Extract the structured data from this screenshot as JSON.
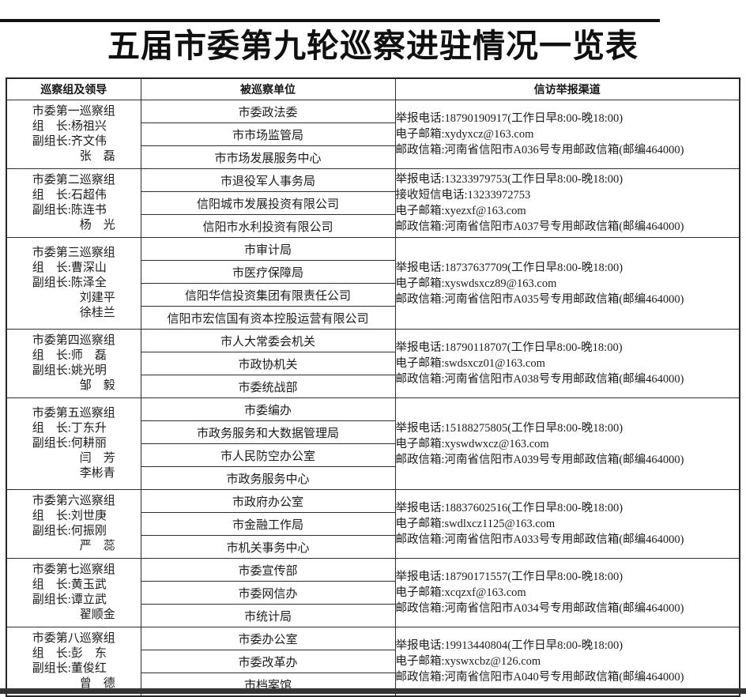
{
  "page": {
    "title": "五届市委第九轮巡察进驻情况一览表"
  },
  "table": {
    "headers": [
      "巡察组及领导",
      "被巡察单位",
      "信访举报渠道"
    ],
    "groups": [
      {
        "name": "市委第一巡察组",
        "leaders": [
          "组　长:杨祖兴",
          "副组长:齐文伟",
          "　　　　张　磊"
        ],
        "units": [
          "市委政法委",
          "市市场监管局",
          "市市场发展服务中心"
        ],
        "channels": [
          "举报电话:18790190917(工作日早8:00-晚18:00)",
          "电子邮箱:xydyxcz@163.com",
          "邮政信箱:河南省信阳市A036号专用邮政信箱(邮编464000)"
        ]
      },
      {
        "name": "市委第二巡察组",
        "leaders": [
          "组　长:石超伟",
          "副组长:陈连书",
          "　　　　杨　光"
        ],
        "units": [
          "市退役军人事务局",
          "信阳城市发展投资有限公司",
          "信阳市水利投资有限公司"
        ],
        "channels": [
          "举报电话:13233979753(工作日早8:00-晚18:00)",
          "接收短信电话:13233972753",
          "电子邮箱:xyezxf@163.com",
          "邮政信箱:河南省信阳市A037号专用邮政信箱(邮编464000)"
        ]
      },
      {
        "name": "市委第三巡察组",
        "leaders": [
          "组　长:曹深山",
          "副组长:陈泽全",
          "　　　　刘建平",
          "　　　　徐桂兰"
        ],
        "units": [
          "市审计局",
          "市医疗保障局",
          "信阳华信投资集团有限责任公司",
          "信阳市宏信国有资本控股运营有限公司"
        ],
        "channels": [
          "举报电话:18737637709(工作日早8:00-晚18:00)",
          "电子邮箱:xyswdsxcz89@163.com",
          "邮政信箱:河南省信阳市A035号专用邮政信箱(邮编464000)"
        ]
      },
      {
        "name": "市委第四巡察组",
        "leaders": [
          "组　长:师　磊",
          "副组长:姚光明",
          "　　　　邹　毅"
        ],
        "units": [
          "市人大常委会机关",
          "市政协机关",
          "市委统战部"
        ],
        "channels": [
          "举报电话:18790118707(工作日早8:00-晚18:00)",
          "电子邮箱:swdsxcz01@163.com",
          "邮政信箱:河南省信阳市A038号专用邮政信箱(邮编464000)"
        ]
      },
      {
        "name": "市委第五巡察组",
        "leaders": [
          "组　长:丁东升",
          "副组长:何耕丽",
          "　　　　闫　芳",
          "　　　　李彬青"
        ],
        "units": [
          "市委编办",
          "市政务服务和大数据管理局",
          "市人民防空办公室",
          "市政务服务中心"
        ],
        "channels": [
          "举报电话:15188275805(工作日早8:00-晚18:00)",
          "电子邮箱:xyswdwxcz@163.com",
          "邮政信箱:河南省信阳市A039号专用邮政信箱(邮编464000)"
        ]
      },
      {
        "name": "市委第六巡察组",
        "leaders": [
          "组　长:刘世庚",
          "副组长:何振刚",
          "　　　　严　蕊"
        ],
        "units": [
          "市政府办公室",
          "市金融工作局",
          "市机关事务中心"
        ],
        "channels": [
          "举报电话:18837602516(工作日早8:00-晚18:00)",
          "电子邮箱:swdlxcz1125@163.com",
          "邮政信箱:河南省信阳市A033号专用邮政信箱(邮编464000)"
        ]
      },
      {
        "name": "市委第七巡察组",
        "leaders": [
          "组　长:黄玉武",
          "副组长:谭立武",
          "　　　　翟顺金"
        ],
        "units": [
          "市委宣传部",
          "市委网信办",
          "市统计局"
        ],
        "channels": [
          "举报电话:18790171557(工作日早8:00-晚18:00)",
          "电子邮箱:xcqzxf@163.com",
          "邮政信箱:河南省信阳市A034号专用邮政信箱(邮编464000)"
        ]
      },
      {
        "name": "市委第八巡察组",
        "leaders": [
          "组　长:彭　东",
          "副组长:董俊红",
          "　　　　曾　德"
        ],
        "units": [
          "市委办公室",
          "市委改革办",
          "市档案馆"
        ],
        "channels": [
          "举报电话:19913440804(工作日早8:00-晚18:00)",
          "电子邮箱:xyswxcbz@126.com",
          "邮政信箱:河南省信阳市A040号专用邮政信箱(邮编464000)"
        ]
      }
    ]
  }
}
